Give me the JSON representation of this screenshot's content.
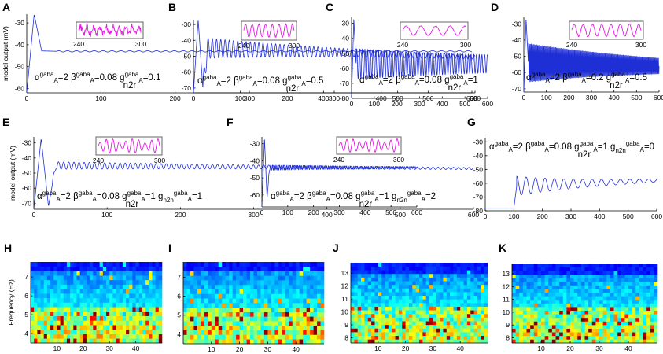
{
  "chart_data": [
    {
      "panel": "A",
      "type": "line",
      "ylabel": "model output (mV)",
      "xlim": [
        0,
        600
      ],
      "ylim": [
        -62,
        -26
      ],
      "xticks": [
        0,
        100,
        200,
        300,
        400,
        500,
        600
      ],
      "yticks": [
        -30,
        -40,
        -50,
        -60
      ],
      "x": [
        0,
        10,
        20,
        40,
        100,
        200,
        300,
        400,
        500,
        600
      ],
      "y": [
        -62,
        -26,
        -42.8,
        -43,
        -43,
        -43,
        -43,
        -43,
        -43,
        -43
      ],
      "osc": {
        "start": 40,
        "amp0": 0.3,
        "amp_end": 0.3,
        "period": 12
      },
      "annotation": {
        "alpha": "2",
        "beta": "0.08",
        "g_n2r": "0.1"
      },
      "annotation_text": "α gaba A=2 β gaba A=0.08 g gaba A n2r=0.1",
      "inset": {
        "xticks": [
          240,
          300
        ],
        "style": "noisy"
      }
    },
    {
      "panel": "B",
      "type": "line",
      "xlim": [
        0,
        600
      ],
      "ylim": [
        -73,
        -27
      ],
      "xticks": [
        0,
        100,
        200,
        300,
        400,
        500,
        600
      ],
      "yticks": [
        -30,
        -40,
        -50,
        -60,
        -70
      ],
      "x": [
        0,
        10,
        20,
        30,
        600
      ],
      "y": [
        -73,
        -27,
        -70,
        -45,
        -50.5
      ],
      "osc": {
        "start": 20,
        "amp0": 6.5,
        "amp_end": 1.2,
        "period": 9
      },
      "annotation": {
        "alpha": "2",
        "beta": "0.08",
        "g_n2r": "0.5"
      },
      "annotation_text": "α gaba A=2 β gaba A=0.08 g gaba A n2r=0.5",
      "inset": {
        "xticks": [
          240,
          300
        ],
        "style": "regular"
      }
    },
    {
      "panel": "C",
      "type": "line",
      "xlim": [
        0,
        600
      ],
      "ylim": [
        -80,
        -26
      ],
      "xticks": [
        0,
        100,
        200,
        300,
        400,
        500,
        600
      ],
      "yticks": [
        -30,
        -40,
        -50,
        -60,
        -70,
        -80
      ],
      "x": [
        0,
        10,
        20,
        600
      ],
      "y": [
        -80,
        -27,
        -57,
        -57
      ],
      "osc": {
        "start": 20,
        "amp0": 10,
        "amp_end": 6,
        "period": 12
      },
      "annotation": {
        "alpha": "2",
        "beta": "0.08",
        "g_n2r": "1"
      },
      "annotation_text": "α gaba A=2 β gaba A=0.08 g gaba A n2r=1",
      "inset": {
        "xticks": [
          240,
          300
        ],
        "style": "slow"
      }
    },
    {
      "panel": "D",
      "type": "line",
      "xlim": [
        0,
        600
      ],
      "ylim": [
        -72,
        -26
      ],
      "xticks": [
        0,
        100,
        200,
        300,
        400,
        500,
        600
      ],
      "yticks": [
        -30,
        -40,
        -50,
        -60,
        -70
      ],
      "x": [
        0,
        10,
        20,
        600
      ],
      "y": [
        -72,
        -27,
        -54,
        -56
      ],
      "osc": {
        "start": 20,
        "amp0": 12,
        "amp_end": 5,
        "period": 4
      },
      "annotation": {
        "alpha": "2",
        "beta": "0.2",
        "g_n2r": "0.5"
      },
      "annotation_text": "α gaba A=2 β gaba A=0.2 g gaba A n2r=0.5",
      "inset": {
        "xticks": [
          240,
          300
        ],
        "style": "regular"
      }
    },
    {
      "panel": "E",
      "type": "line",
      "ylabel": "model output (mV)",
      "xlim": [
        0,
        600
      ],
      "ylim": [
        -74,
        -26
      ],
      "xticks": [
        0,
        100,
        200,
        300,
        400,
        500,
        600
      ],
      "yticks": [
        -30,
        -40,
        -50,
        -60,
        -70
      ],
      "x": [
        0,
        10,
        20,
        30,
        600
      ],
      "y": [
        -74,
        -27,
        -72,
        -45,
        -47
      ],
      "osc": {
        "start": 25,
        "amp0": 2.5,
        "amp_end": 0.7,
        "period": 7
      },
      "annotation": {
        "alpha": "2",
        "beta": "0.08",
        "g_n2r": "1",
        "g_n2n": "1"
      },
      "annotation_text": "α gaba A=2 β gaba A=0.08 g gaba A n2r=1 g gaba A n2n=1",
      "inset": {
        "xticks": [
          240,
          300
        ],
        "style": "beat"
      }
    },
    {
      "panel": "F",
      "type": "line",
      "xlim": [
        0,
        600
      ],
      "ylim": [
        -67,
        -26
      ],
      "xticks": [
        0,
        100,
        200,
        300,
        400,
        500,
        600
      ],
      "yticks": [
        -30,
        -40,
        -50,
        -60
      ],
      "x": [
        0,
        10,
        20,
        30,
        600
      ],
      "y": [
        -67,
        -27,
        -62,
        -44,
        -44
      ],
      "osc": {
        "start": 25,
        "amp0": 1.5,
        "amp_end": 0.6,
        "period": 7
      },
      "annotation": {
        "alpha": "2",
        "beta": "0.08",
        "g_n2r": "1",
        "g_n2n": "2"
      },
      "annotation_text": "α gaba A=2 β gaba A=0.08 g gaba A n2r=1 g gaba A n2n=2",
      "inset": {
        "xticks": [
          240,
          300
        ],
        "style": "beat"
      }
    },
    {
      "panel": "G",
      "type": "line",
      "xlim": [
        0,
        600
      ],
      "ylim": [
        -80,
        -27
      ],
      "xticks": [
        0,
        100,
        200,
        300,
        400,
        500,
        600
      ],
      "yticks": [
        -30,
        -40,
        -50,
        -60,
        -70,
        -80
      ],
      "x": [
        0,
        100,
        110,
        600
      ],
      "y": [
        -78,
        -78,
        -62,
        -58
      ],
      "osc": {
        "start": 110,
        "amp0": 7,
        "amp_end": 1.2,
        "period": 33
      },
      "annotation": {
        "alpha": "2",
        "beta": "0.08",
        "g_n2r": "1",
        "g_n2n": "0"
      },
      "annotation_text": "α gaba A=2 β gaba A=0.08 g gaba A n2r=1 g gaba A n2n=0"
    },
    {
      "panel": "H",
      "type": "heatmap",
      "ylabel": "Frequency (Hz)",
      "xlim": [
        0,
        50
      ],
      "ylim": [
        3.5,
        7.8
      ],
      "xticks": [
        10,
        20,
        30,
        40
      ],
      "yticks": [
        4,
        5,
        6,
        7
      ],
      "rows": 18,
      "cols": 40,
      "seed": 11,
      "low_band": [
        3.5,
        5.5
      ]
    },
    {
      "panel": "I",
      "type": "heatmap",
      "xlim": [
        0,
        50
      ],
      "ylim": [
        3.5,
        7.8
      ],
      "xticks": [
        10,
        20,
        30,
        40
      ],
      "yticks": [
        4,
        5,
        6,
        7
      ],
      "rows": 18,
      "cols": 40,
      "seed": 23,
      "low_band": [
        3.5,
        5.5
      ]
    },
    {
      "panel": "J",
      "type": "heatmap",
      "xlim": [
        0,
        50
      ],
      "ylim": [
        7.6,
        13.8
      ],
      "xticks": [
        10,
        20,
        30,
        40
      ],
      "yticks": [
        8,
        9,
        10,
        11,
        12,
        13
      ],
      "rows": 22,
      "cols": 40,
      "seed": 37,
      "low_band": [
        7.6,
        10.5
      ]
    },
    {
      "panel": "K",
      "type": "heatmap",
      "xlim": [
        0,
        50
      ],
      "ylim": [
        7.6,
        13.8
      ],
      "xticks": [
        10,
        20,
        30,
        40
      ],
      "yticks": [
        8,
        9,
        10,
        11,
        12,
        13
      ],
      "rows": 22,
      "cols": 40,
      "seed": 53,
      "low_band": [
        7.6,
        10.5
      ]
    }
  ],
  "text": {
    "sym_alpha": "α",
    "sym_beta": "β",
    "sup_gaba": "gaba",
    "sub_A": "A",
    "sub_n2r": "n2r",
    "sub_n2n": "n2n",
    "eq": "="
  }
}
